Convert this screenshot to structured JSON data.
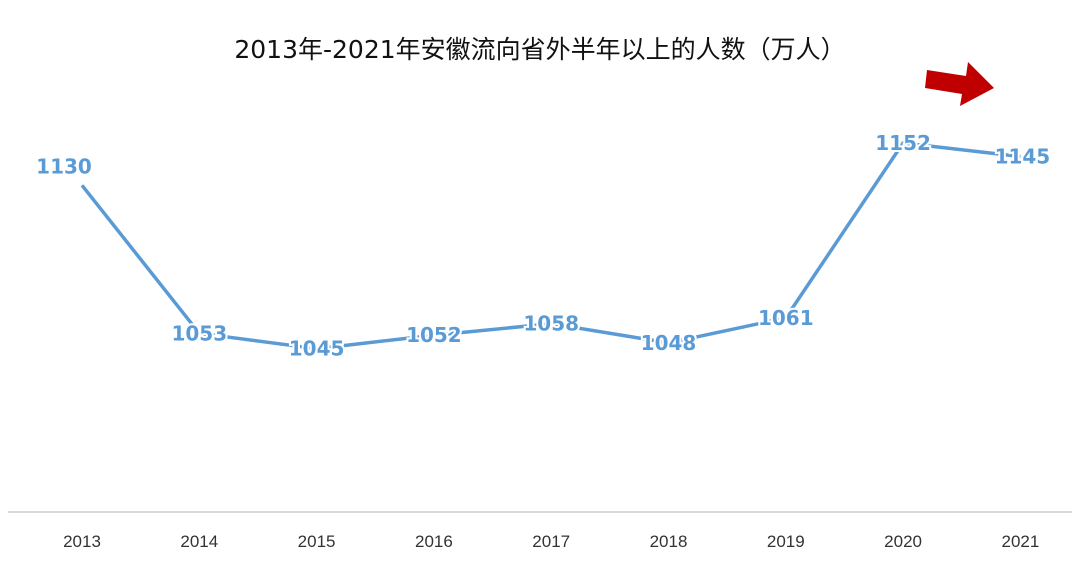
{
  "chart_data": {
    "type": "line",
    "title": "2013年-2021年安徽流向省外半年以上的人数（万人）",
    "categories": [
      "2013",
      "2014",
      "2015",
      "2016",
      "2017",
      "2018",
      "2019",
      "2020",
      "2021"
    ],
    "series": [
      {
        "values": [
          1130,
          1053,
          1045,
          1052,
          1058,
          1048,
          1061,
          1152,
          1145
        ]
      }
    ],
    "xlabel": "",
    "ylabel": "",
    "ylim": [
      960,
      1190
    ],
    "grid": false,
    "legend": "none",
    "data_labels": true,
    "colors": {
      "line": "#5b9bd5",
      "label": "#5b9bd5",
      "arrow": "#c00000",
      "axis": "#d9d9d9"
    },
    "annotation_icon": "red-right-arrow-icon"
  }
}
